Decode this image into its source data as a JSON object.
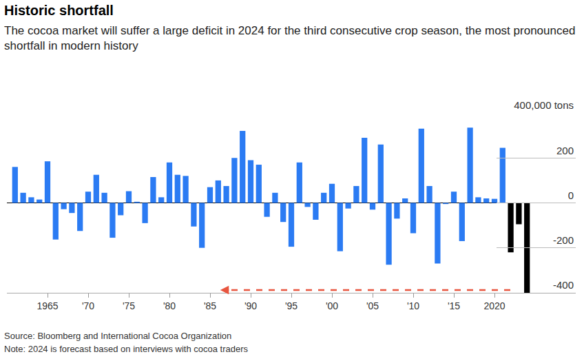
{
  "chart_data": {
    "type": "bar",
    "title": "Historic shortfall",
    "subtitle": "The cocoa market will suffer a large deficit in 2024 for the third consecutive crop season, the most pronounced shortfall in modern history",
    "source": "Source: Bloomberg and International Cocoa Organization",
    "note": "Note: 2024 is forecast based on interviews with cocoa traders",
    "x": [
      1961,
      1962,
      1963,
      1964,
      1965,
      1966,
      1967,
      1968,
      1969,
      1970,
      1971,
      1972,
      1973,
      1974,
      1975,
      1976,
      1977,
      1978,
      1979,
      1980,
      1981,
      1982,
      1983,
      1984,
      1985,
      1986,
      1987,
      1988,
      1989,
      1990,
      1991,
      1992,
      1993,
      1994,
      1995,
      1996,
      1997,
      1998,
      1999,
      2000,
      2001,
      2002,
      2003,
      2004,
      2005,
      2006,
      2007,
      2008,
      2009,
      2010,
      2011,
      2012,
      2013,
      2014,
      2015,
      2016,
      2017,
      2018,
      2019,
      2020,
      2021,
      2022,
      2023,
      2024
    ],
    "values": [
      160,
      45,
      25,
      15,
      185,
      -163,
      -28,
      -45,
      -125,
      50,
      125,
      45,
      -155,
      -55,
      52,
      5,
      -90,
      115,
      25,
      180,
      125,
      120,
      -105,
      -200,
      70,
      100,
      75,
      200,
      320,
      190,
      170,
      -62,
      45,
      -85,
      -195,
      180,
      -18,
      -75,
      45,
      85,
      -215,
      -25,
      75,
      290,
      -30,
      260,
      -275,
      -70,
      20,
      -135,
      330,
      75,
      -270,
      -5,
      50,
      -170,
      335,
      25,
      20,
      18,
      245,
      -220,
      -95,
      -400
    ],
    "colors": [
      "#2b7bf3",
      "#2b7bf3",
      "#2b7bf3",
      "#2b7bf3",
      "#2b7bf3",
      "#2b7bf3",
      "#2b7bf3",
      "#2b7bf3",
      "#2b7bf3",
      "#2b7bf3",
      "#2b7bf3",
      "#2b7bf3",
      "#2b7bf3",
      "#2b7bf3",
      "#2b7bf3",
      "#2b7bf3",
      "#2b7bf3",
      "#2b7bf3",
      "#2b7bf3",
      "#2b7bf3",
      "#2b7bf3",
      "#2b7bf3",
      "#2b7bf3",
      "#2b7bf3",
      "#2b7bf3",
      "#2b7bf3",
      "#2b7bf3",
      "#2b7bf3",
      "#2b7bf3",
      "#2b7bf3",
      "#2b7bf3",
      "#2b7bf3",
      "#2b7bf3",
      "#2b7bf3",
      "#2b7bf3",
      "#2b7bf3",
      "#2b7bf3",
      "#2b7bf3",
      "#2b7bf3",
      "#2b7bf3",
      "#2b7bf3",
      "#2b7bf3",
      "#2b7bf3",
      "#2b7bf3",
      "#2b7bf3",
      "#2b7bf3",
      "#2b7bf3",
      "#2b7bf3",
      "#2b7bf3",
      "#2b7bf3",
      "#2b7bf3",
      "#2b7bf3",
      "#2b7bf3",
      "#2b7bf3",
      "#2b7bf3",
      "#2b7bf3",
      "#2b7bf3",
      "#2b7bf3",
      "#2b7bf3",
      "#2b7bf3",
      "#2b7bf3",
      "#000000",
      "#000000",
      "#000000"
    ],
    "xlim": [
      1960,
      2030
    ],
    "xticks": [
      1965,
      {
        "value": 1970,
        "label": "'70"
      },
      {
        "value": 1975,
        "label": "'75"
      },
      {
        "value": 1980,
        "label": "'80"
      },
      {
        "value": 1985,
        "label": "'85"
      },
      {
        "value": 1990,
        "label": "'90"
      },
      {
        "value": 1995,
        "label": "'95"
      },
      {
        "value": 2000,
        "label": "'00"
      },
      {
        "value": 2005,
        "label": "'05"
      },
      {
        "value": 2010,
        "label": "'10"
      },
      {
        "value": 2015,
        "label": "'15"
      },
      2020
    ],
    "ylim": [
      -400,
      400
    ],
    "yticks": [
      -400,
      -200,
      0,
      200,
      {
        "value": 400,
        "label": "400,000 tons"
      }
    ],
    "grid": false
  }
}
